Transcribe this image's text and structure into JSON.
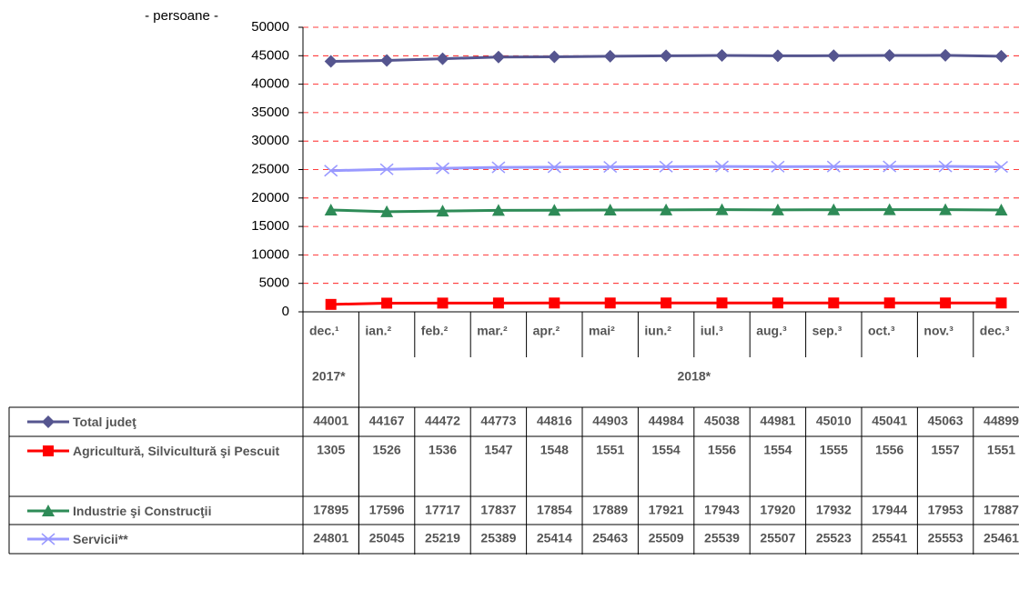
{
  "chart_data": {
    "type": "line",
    "y_label": "- persoane -",
    "categories": [
      "dec.¹",
      "ian.²",
      "feb.²",
      "mar.²",
      "apr.²",
      "mai²",
      "iun.²",
      "iul.³",
      "aug.³",
      "sep.³",
      "oct.³",
      "nov.³",
      "dec.³"
    ],
    "group_labels": [
      "2017*",
      "2018*"
    ],
    "ylim": [
      0,
      50000
    ],
    "yticks": [
      0,
      5000,
      10000,
      15000,
      20000,
      25000,
      30000,
      35000,
      40000,
      45000,
      50000
    ],
    "grid": true,
    "series": [
      {
        "name": "Total judeţ",
        "color": "#55558f",
        "marker": "diamond",
        "values": [
          44001,
          44167,
          44472,
          44773,
          44816,
          44903,
          44984,
          45038,
          44981,
          45010,
          45041,
          45063,
          44899
        ]
      },
      {
        "name": "Agricultură,  Silvicultură şi Pescuit",
        "color": "#ff0000",
        "marker": "square",
        "values": [
          1305,
          1526,
          1536,
          1547,
          1548,
          1551,
          1554,
          1556,
          1554,
          1555,
          1556,
          1557,
          1551
        ]
      },
      {
        "name": "Industrie şi Construcţii",
        "color": "#2e8b57",
        "marker": "triangle",
        "values": [
          17895,
          17596,
          17717,
          17837,
          17854,
          17889,
          17921,
          17943,
          17920,
          17932,
          17944,
          17953,
          17887
        ]
      },
      {
        "name": "Servicii**",
        "color": "#9999ff",
        "marker": "x",
        "values": [
          24801,
          25045,
          25219,
          25389,
          25414,
          25463,
          25509,
          25539,
          25507,
          25523,
          25541,
          25553,
          25461
        ]
      }
    ]
  }
}
